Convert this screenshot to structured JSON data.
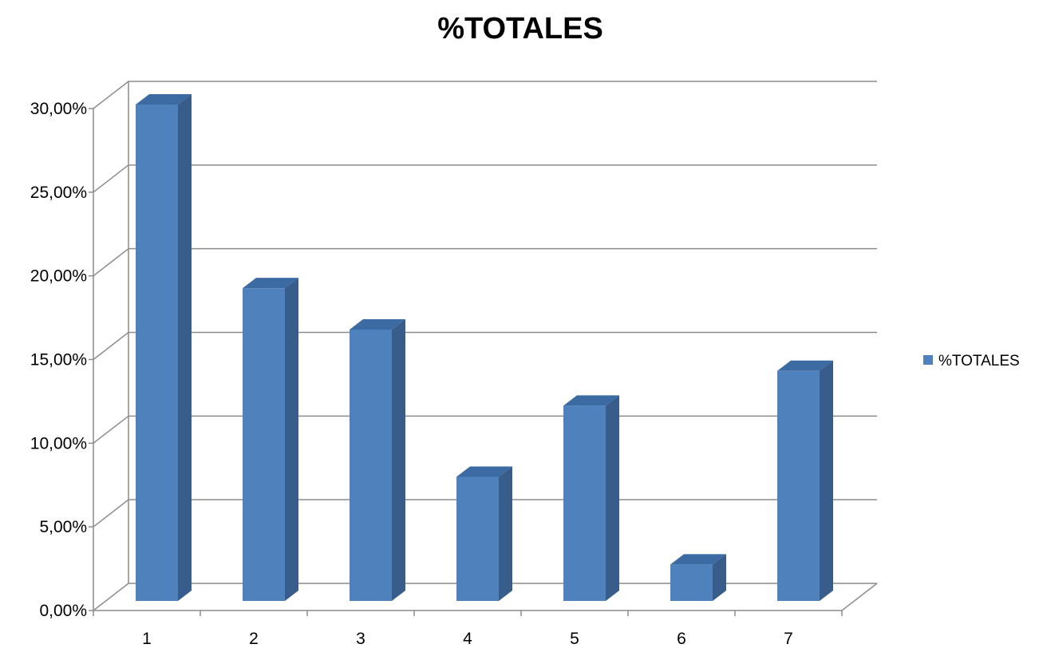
{
  "chart_data": {
    "type": "bar",
    "title": "%TOTALES",
    "xlabel": "",
    "ylabel": "",
    "categories": [
      "1",
      "2",
      "3",
      "4",
      "5",
      "6",
      "7"
    ],
    "series": [
      {
        "name": "%TOTALES",
        "values": [
          0.3,
          0.189,
          0.164,
          0.075,
          0.118,
          0.022,
          0.139
        ]
      }
    ],
    "ylim": [
      0,
      0.3
    ],
    "yticks": [
      "0,00%",
      "5,00%",
      "10,00%",
      "15,00%",
      "20,00%",
      "25,00%",
      "30,00%"
    ],
    "grid": true,
    "legend": "right",
    "style": "3d-column",
    "colors": {
      "front": "#4f81bd",
      "side": "#385d8a",
      "top": "#3c6aa3"
    }
  }
}
